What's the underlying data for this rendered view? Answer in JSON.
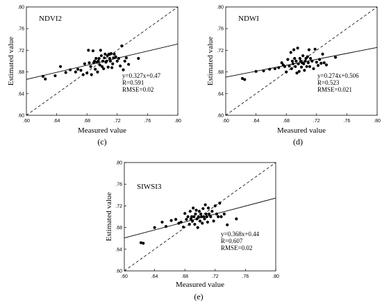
{
  "chart_data": [
    {
      "type": "scatter",
      "panel": "(c)",
      "title": "NDVI2",
      "xlabel": "Measured value",
      "ylabel": "Estimated value",
      "xlim": [
        0.6,
        0.8
      ],
      "ylim": [
        0.6,
        0.8
      ],
      "xticks": [
        ".60",
        ".64",
        ".68",
        ".72",
        ".76",
        ".80"
      ],
      "yticks": [
        ".60",
        ".64",
        ".68",
        ".72",
        ".76",
        ".80"
      ],
      "fit": {
        "slope": 0.327,
        "intercept": 0.47
      },
      "annotation": [
        "y=0.327x+0.47",
        "R=0.591",
        "RMSE=0.02"
      ],
      "points": [
        [
          0.622,
          0.672
        ],
        [
          0.625,
          0.667
        ],
        [
          0.638,
          0.673
        ],
        [
          0.645,
          0.69
        ],
        [
          0.652,
          0.679
        ],
        [
          0.658,
          0.684
        ],
        [
          0.665,
          0.68
        ],
        [
          0.668,
          0.685
        ],
        [
          0.672,
          0.683
        ],
        [
          0.675,
          0.675
        ],
        [
          0.677,
          0.695
        ],
        [
          0.68,
          0.678
        ],
        [
          0.682,
          0.72
        ],
        [
          0.683,
          0.697
        ],
        [
          0.685,
          0.69
        ],
        [
          0.686,
          0.675
        ],
        [
          0.688,
          0.719
        ],
        [
          0.689,
          0.697
        ],
        [
          0.69,
          0.7
        ],
        [
          0.691,
          0.685
        ],
        [
          0.692,
          0.705
        ],
        [
          0.693,
          0.698
        ],
        [
          0.694,
          0.68
        ],
        [
          0.695,
          0.7
        ],
        [
          0.696,
          0.705
        ],
        [
          0.697,
          0.693
        ],
        [
          0.698,
          0.72
        ],
        [
          0.699,
          0.71
        ],
        [
          0.7,
          0.69
        ],
        [
          0.701,
          0.7
        ],
        [
          0.702,
          0.686
        ],
        [
          0.703,
          0.706
        ],
        [
          0.704,
          0.713
        ],
        [
          0.705,
          0.698
        ],
        [
          0.706,
          0.7
        ],
        [
          0.707,
          0.71
        ],
        [
          0.708,
          0.689
        ],
        [
          0.709,
          0.713
        ],
        [
          0.71,
          0.705
        ],
        [
          0.711,
          0.7
        ],
        [
          0.712,
          0.714
        ],
        [
          0.713,
          0.688
        ],
        [
          0.714,
          0.695
        ],
        [
          0.715,
          0.706
        ],
        [
          0.716,
          0.713
        ],
        [
          0.718,
          0.708
        ],
        [
          0.72,
          0.7
        ],
        [
          0.722,
          0.705
        ],
        [
          0.724,
          0.691
        ],
        [
          0.726,
          0.728
        ],
        [
          0.728,
          0.684
        ],
        [
          0.73,
          0.7
        ],
        [
          0.732,
          0.706
        ],
        [
          0.735,
          0.694
        ],
        [
          0.748,
          0.705
        ]
      ]
    },
    {
      "type": "scatter",
      "panel": "(d)",
      "title": "NDWI",
      "xlabel": "Measured value",
      "ylabel": "Estimated value",
      "xlim": [
        0.6,
        0.8
      ],
      "ylim": [
        0.6,
        0.8
      ],
      "xticks": [
        ".60",
        ".64",
        ".68",
        ".72",
        ".76",
        ".80"
      ],
      "yticks": [
        ".60",
        ".64",
        ".68",
        ".72",
        ".76",
        ".80"
      ],
      "fit": {
        "slope": 0.274,
        "intercept": 0.506
      },
      "annotation": [
        "y=0.274x+0.506",
        "R=0.523",
        "RMSE=0.021"
      ],
      "points": [
        [
          0.622,
          0.668
        ],
        [
          0.625,
          0.666
        ],
        [
          0.64,
          0.681
        ],
        [
          0.65,
          0.682
        ],
        [
          0.658,
          0.685
        ],
        [
          0.665,
          0.686
        ],
        [
          0.67,
          0.688
        ],
        [
          0.674,
          0.697
        ],
        [
          0.676,
          0.693
        ],
        [
          0.678,
          0.69
        ],
        [
          0.68,
          0.68
        ],
        [
          0.682,
          0.703
        ],
        [
          0.684,
          0.691
        ],
        [
          0.686,
          0.716
        ],
        [
          0.687,
          0.686
        ],
        [
          0.688,
          0.7
        ],
        [
          0.689,
          0.695
        ],
        [
          0.69,
          0.721
        ],
        [
          0.691,
          0.705
        ],
        [
          0.692,
          0.69
        ],
        [
          0.693,
          0.7
        ],
        [
          0.694,
          0.678
        ],
        [
          0.695,
          0.724
        ],
        [
          0.696,
          0.695
        ],
        [
          0.697,
          0.681
        ],
        [
          0.698,
          0.705
        ],
        [
          0.699,
          0.7
        ],
        [
          0.7,
          0.689
        ],
        [
          0.701,
          0.697
        ],
        [
          0.702,
          0.71
        ],
        [
          0.703,
          0.695
        ],
        [
          0.704,
          0.683
        ],
        [
          0.705,
          0.7
        ],
        [
          0.706,
          0.705
        ],
        [
          0.707,
          0.69
        ],
        [
          0.708,
          0.708
        ],
        [
          0.709,
          0.697
        ],
        [
          0.71,
          0.721
        ],
        [
          0.711,
          0.69
        ],
        [
          0.712,
          0.705
        ],
        [
          0.714,
          0.7
        ],
        [
          0.716,
          0.686
        ],
        [
          0.718,
          0.722
        ],
        [
          0.72,
          0.698
        ],
        [
          0.722,
          0.692
        ],
        [
          0.724,
          0.703
        ],
        [
          0.726,
          0.696
        ],
        [
          0.728,
          0.713
        ],
        [
          0.73,
          0.697
        ],
        [
          0.733,
          0.693
        ],
        [
          0.745,
          0.707
        ]
      ]
    },
    {
      "type": "scatter",
      "panel": "(e)",
      "title": "SIWSI3",
      "xlabel": "Measured value",
      "ylabel": "Estimated value",
      "xlim": [
        0.6,
        0.8
      ],
      "ylim": [
        0.6,
        0.8
      ],
      "xticks": [
        ".60",
        ".64",
        ".68",
        ".72",
        ".76",
        ".80"
      ],
      "yticks": [
        ".60",
        ".64",
        ".68",
        ".72",
        ".76",
        ".80"
      ],
      "fit": {
        "slope": 0.368,
        "intercept": 0.44
      },
      "annotation": [
        "y=0.368x+0.44",
        "R=0.607",
        "RMSE=0.02"
      ],
      "points": [
        [
          0.622,
          0.652
        ],
        [
          0.625,
          0.651
        ],
        [
          0.64,
          0.68
        ],
        [
          0.65,
          0.69
        ],
        [
          0.655,
          0.682
        ],
        [
          0.662,
          0.693
        ],
        [
          0.668,
          0.695
        ],
        [
          0.672,
          0.688
        ],
        [
          0.675,
          0.69
        ],
        [
          0.678,
          0.681
        ],
        [
          0.68,
          0.706
        ],
        [
          0.682,
          0.695
        ],
        [
          0.684,
          0.7
        ],
        [
          0.686,
          0.686
        ],
        [
          0.687,
          0.71
        ],
        [
          0.688,
          0.696
        ],
        [
          0.689,
          0.7
        ],
        [
          0.69,
          0.692
        ],
        [
          0.691,
          0.716
        ],
        [
          0.692,
          0.7
        ],
        [
          0.693,
          0.686
        ],
        [
          0.694,
          0.705
        ],
        [
          0.695,
          0.712
        ],
        [
          0.696,
          0.696
        ],
        [
          0.697,
          0.68
        ],
        [
          0.698,
          0.7
        ],
        [
          0.699,
          0.71
        ],
        [
          0.7,
          0.692
        ],
        [
          0.701,
          0.705
        ],
        [
          0.702,
          0.7
        ],
        [
          0.703,
          0.688
        ],
        [
          0.704,
          0.715
        ],
        [
          0.705,
          0.7
        ],
        [
          0.706,
          0.696
        ],
        [
          0.707,
          0.722
        ],
        [
          0.708,
          0.705
        ],
        [
          0.709,
          0.7
        ],
        [
          0.71,
          0.69
        ],
        [
          0.711,
          0.716
        ],
        [
          0.712,
          0.705
        ],
        [
          0.714,
          0.7
        ],
        [
          0.716,
          0.71
        ],
        [
          0.718,
          0.692
        ],
        [
          0.72,
          0.72
        ],
        [
          0.722,
          0.705
        ],
        [
          0.724,
          0.7
        ],
        [
          0.726,
          0.725
        ],
        [
          0.728,
          0.7
        ],
        [
          0.732,
          0.705
        ],
        [
          0.736,
          0.685
        ],
        [
          0.748,
          0.696
        ]
      ]
    }
  ]
}
